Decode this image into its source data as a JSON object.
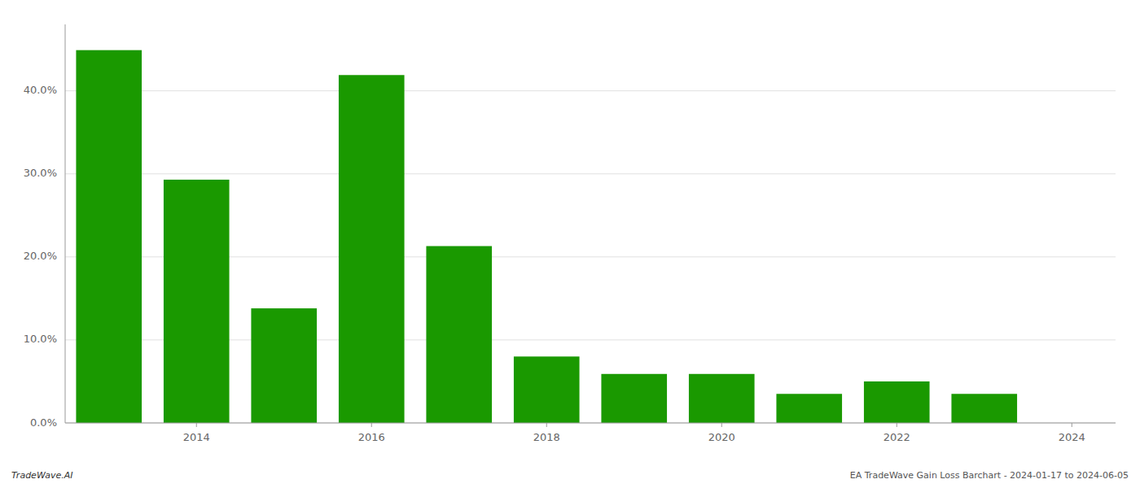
{
  "chart_data": {
    "type": "bar",
    "x": [
      2013,
      2014,
      2015,
      2016,
      2017,
      2018,
      2019,
      2020,
      2021,
      2022,
      2023
    ],
    "values": [
      0.449,
      0.293,
      0.138,
      0.419,
      0.213,
      0.08,
      0.059,
      0.059,
      0.035,
      0.05,
      0.035
    ],
    "color": "#1a9900",
    "xlim": [
      2012.5,
      2024.5
    ],
    "xticks": [
      2014,
      2016,
      2018,
      2020,
      2022,
      2024
    ],
    "ylim": [
      0,
      0.48
    ],
    "yticks": [
      {
        "value": 0.0,
        "label": "0.0%"
      },
      {
        "value": 0.1,
        "label": "10.0%"
      },
      {
        "value": 0.2,
        "label": "20.0%"
      },
      {
        "value": 0.3,
        "label": "30.0%"
      },
      {
        "value": 0.4,
        "label": "40.0%"
      }
    ],
    "grid": true,
    "annotations": [
      "TradeWave.AI",
      "EA TradeWave Gain Loss Barchart - 2024-01-17 to 2024-06-05"
    ]
  }
}
